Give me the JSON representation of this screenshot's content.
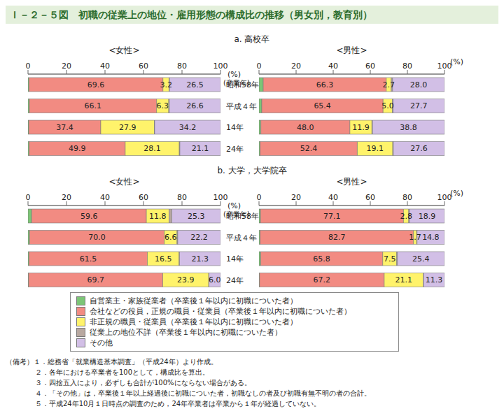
{
  "title": "Ｉ－２－５図　初職の従業上の地位・雇用形態の構成比の推移（男女別，教育別）",
  "section_titles": [
    "a. 高校卒",
    "b. 大学，大学院卒"
  ],
  "chart_data": [
    {
      "type": "bar",
      "orientation": "horizontal",
      "stacked": true,
      "title": "<女性>",
      "x_label": "(%)",
      "y_label": "(卒業年)",
      "categories": [
        "昭和58年",
        "平成４年",
        "14年",
        "24年"
      ],
      "xlim": [
        0,
        100
      ],
      "xticks": [
        0,
        20,
        40,
        60,
        80,
        100
      ],
      "series": [
        {
          "name": "自営業主・家族従業者（卒業後１年以内に初職についた者）",
          "color": "#7cc576",
          "values": [
            0.5,
            0.7,
            0.4,
            0.6
          ],
          "data_labels": false
        },
        {
          "name": "会社などの役員，正規の職員・従業員（卒業後１年以内に初職についた者）",
          "color": "#f28b82",
          "values": [
            69.6,
            66.1,
            37.4,
            49.9
          ],
          "value_labels": [
            "69.6",
            "66.1",
            "37.4",
            "49.9"
          ],
          "data_labels": true
        },
        {
          "name": "非正規の職員・従業員（卒業後１年以内に初職についた者）",
          "color": "#fff36b",
          "values": [
            3.2,
            6.3,
            27.9,
            28.1
          ],
          "value_labels": [
            "3.2",
            "6.3",
            "27.9",
            "28.1"
          ],
          "data_labels": true
        },
        {
          "name": "従業上の地位不詳（卒業後１年以内に初職についた者）",
          "color": "#b8a8a0",
          "values": [
            0.2,
            0.3,
            0.1,
            0.3
          ],
          "data_labels": false
        },
        {
          "name": "その他",
          "color": "#d2bfe6",
          "values": [
            26.5,
            26.6,
            34.2,
            21.1
          ],
          "value_labels": [
            "26.5",
            "26.6",
            "34.2",
            "21.1"
          ],
          "data_labels": true
        }
      ]
    },
    {
      "type": "bar",
      "orientation": "horizontal",
      "stacked": true,
      "title": "<男性>",
      "x_label": "(%)",
      "tick_labels": "x",
      "categories": [
        "昭和58年",
        "平成４年",
        "14年",
        "24年"
      ],
      "xlim": [
        0,
        100
      ],
      "xticks": [
        0,
        20,
        40,
        60,
        80,
        100
      ],
      "series": [
        {
          "name": "自営業主・家族従業者（卒業後１年以内に初職についた者）",
          "color": "#7cc576",
          "values": [
            2.3,
            1.5,
            1.0,
            0.6
          ],
          "data_labels": false
        },
        {
          "name": "会社などの役員，正規の職員・従業員（卒業後１年以内に初職についた者）",
          "color": "#f28b82",
          "values": [
            66.3,
            65.4,
            48.0,
            52.4
          ],
          "value_labels": [
            "66.3",
            "65.4",
            "48.0",
            "52.4"
          ],
          "data_labels": true
        },
        {
          "name": "非正規の職員・従業員（卒業後１年以内に初職についた者）",
          "color": "#fff36b",
          "values": [
            2.7,
            5.0,
            11.9,
            19.1
          ],
          "value_labels": [
            "2.7",
            "5.0",
            "11.9",
            "19.1"
          ],
          "data_labels": true
        },
        {
          "name": "従業上の地位不詳（卒業後１年以内に初職についた者）",
          "color": "#b8a8a0",
          "values": [
            0.7,
            0.4,
            0.3,
            0.3
          ],
          "data_labels": false
        },
        {
          "name": "その他",
          "color": "#d2bfe6",
          "values": [
            28.0,
            27.7,
            38.8,
            27.6
          ],
          "value_labels": [
            "28.0",
            "27.7",
            "38.8",
            "27.6"
          ],
          "data_labels": true
        }
      ]
    },
    {
      "type": "bar",
      "orientation": "horizontal",
      "stacked": true,
      "title": "<女性>",
      "x_label": "(%)",
      "y_label": "(卒業年)",
      "categories": [
        "昭和58年",
        "平成４年",
        "14年",
        "24年"
      ],
      "xlim": [
        0,
        100
      ],
      "xticks": [
        0,
        20,
        40,
        60,
        80,
        100
      ],
      "series": [
        {
          "name": "自営業主・家族従業者（卒業後１年以内に初職についた者）",
          "color": "#7cc576",
          "values": [
            1.9,
            0.8,
            0.5,
            0.3
          ],
          "data_labels": false
        },
        {
          "name": "会社などの役員，正規の職員・従業員（卒業後１年以内に初職についた者）",
          "color": "#f28b82",
          "values": [
            59.6,
            70.0,
            61.5,
            69.7
          ],
          "value_labels": [
            "59.6",
            "70.0",
            "61.5",
            "69.7"
          ],
          "data_labels": true
        },
        {
          "name": "非正規の職員・従業員（卒業後１年以内に初職についた者）",
          "color": "#fff36b",
          "values": [
            11.8,
            6.6,
            16.5,
            23.9
          ],
          "value_labels": [
            "11.8",
            "6.6",
            "16.5",
            "23.9"
          ],
          "data_labels": true
        },
        {
          "name": "従業上の地位不詳（卒業後１年以内に初職についた者）",
          "color": "#b8a8a0",
          "values": [
            1.4,
            0.4,
            0.2,
            0.1
          ],
          "data_labels": false
        },
        {
          "name": "その他",
          "color": "#d2bfe6",
          "values": [
            25.3,
            22.2,
            21.3,
            6.0
          ],
          "value_labels": [
            "25.3",
            "22.2",
            "21.3",
            "6.0"
          ],
          "data_labels": true
        }
      ]
    },
    {
      "type": "bar",
      "orientation": "horizontal",
      "stacked": true,
      "title": "<男性>",
      "x_label": "(%)",
      "tick_labels": "x",
      "categories": [
        "昭和58年",
        "平成４年",
        "14年",
        "24年"
      ],
      "xlim": [
        0,
        100
      ],
      "xticks": [
        0,
        20,
        40,
        60,
        80,
        100
      ],
      "series": [
        {
          "name": "自営業主・家族従業者（卒業後１年以内に初職についた者）",
          "color": "#7cc576",
          "values": [
            0.8,
            0.6,
            0.9,
            0.3
          ],
          "data_labels": false
        },
        {
          "name": "会社などの役員，正規の職員・従業員（卒業後１年以内に初職についた者）",
          "color": "#f28b82",
          "values": [
            77.1,
            82.7,
            65.8,
            67.2
          ],
          "value_labels": [
            "77.1",
            "82.7",
            "65.8",
            "67.2"
          ],
          "data_labels": true
        },
        {
          "name": "非正規の職員・従業員（卒業後１年以内に初職についた者）",
          "color": "#fff36b",
          "values": [
            2.8,
            1.7,
            7.5,
            21.1
          ],
          "value_labels": [
            "2.8",
            "1.7",
            "7.5",
            "21.1"
          ],
          "data_labels": true
        },
        {
          "name": "従業上の地位不詳（卒業後１年以内に初職についた者）",
          "color": "#b8a8a0",
          "values": [
            0.4,
            0.2,
            0.4,
            0.1
          ],
          "data_labels": false
        },
        {
          "name": "その他",
          "color": "#d2bfe6",
          "values": [
            18.9,
            14.8,
            25.4,
            11.3
          ],
          "value_labels": [
            "18.9",
            "14.8",
            "25.4",
            "11.3"
          ],
          "data_labels": true
        }
      ]
    }
  ],
  "notes": [
    "（備考）１．総務省「就業構造基本調査」（平成24年）より作成。",
    "２．各年における卒業者を100として，構成比を算出。",
    "３．四捨五入により，必ずしも合計が100%にならない場合がある。",
    "４．「その他」は，卒業後１年以上経過後に初職についた者，初職なしの者及び初職有無不明の者の合計。",
    "５．平成24年10月１日時点の調査のため，24年卒業者は卒業から１年が経過していない。"
  ]
}
